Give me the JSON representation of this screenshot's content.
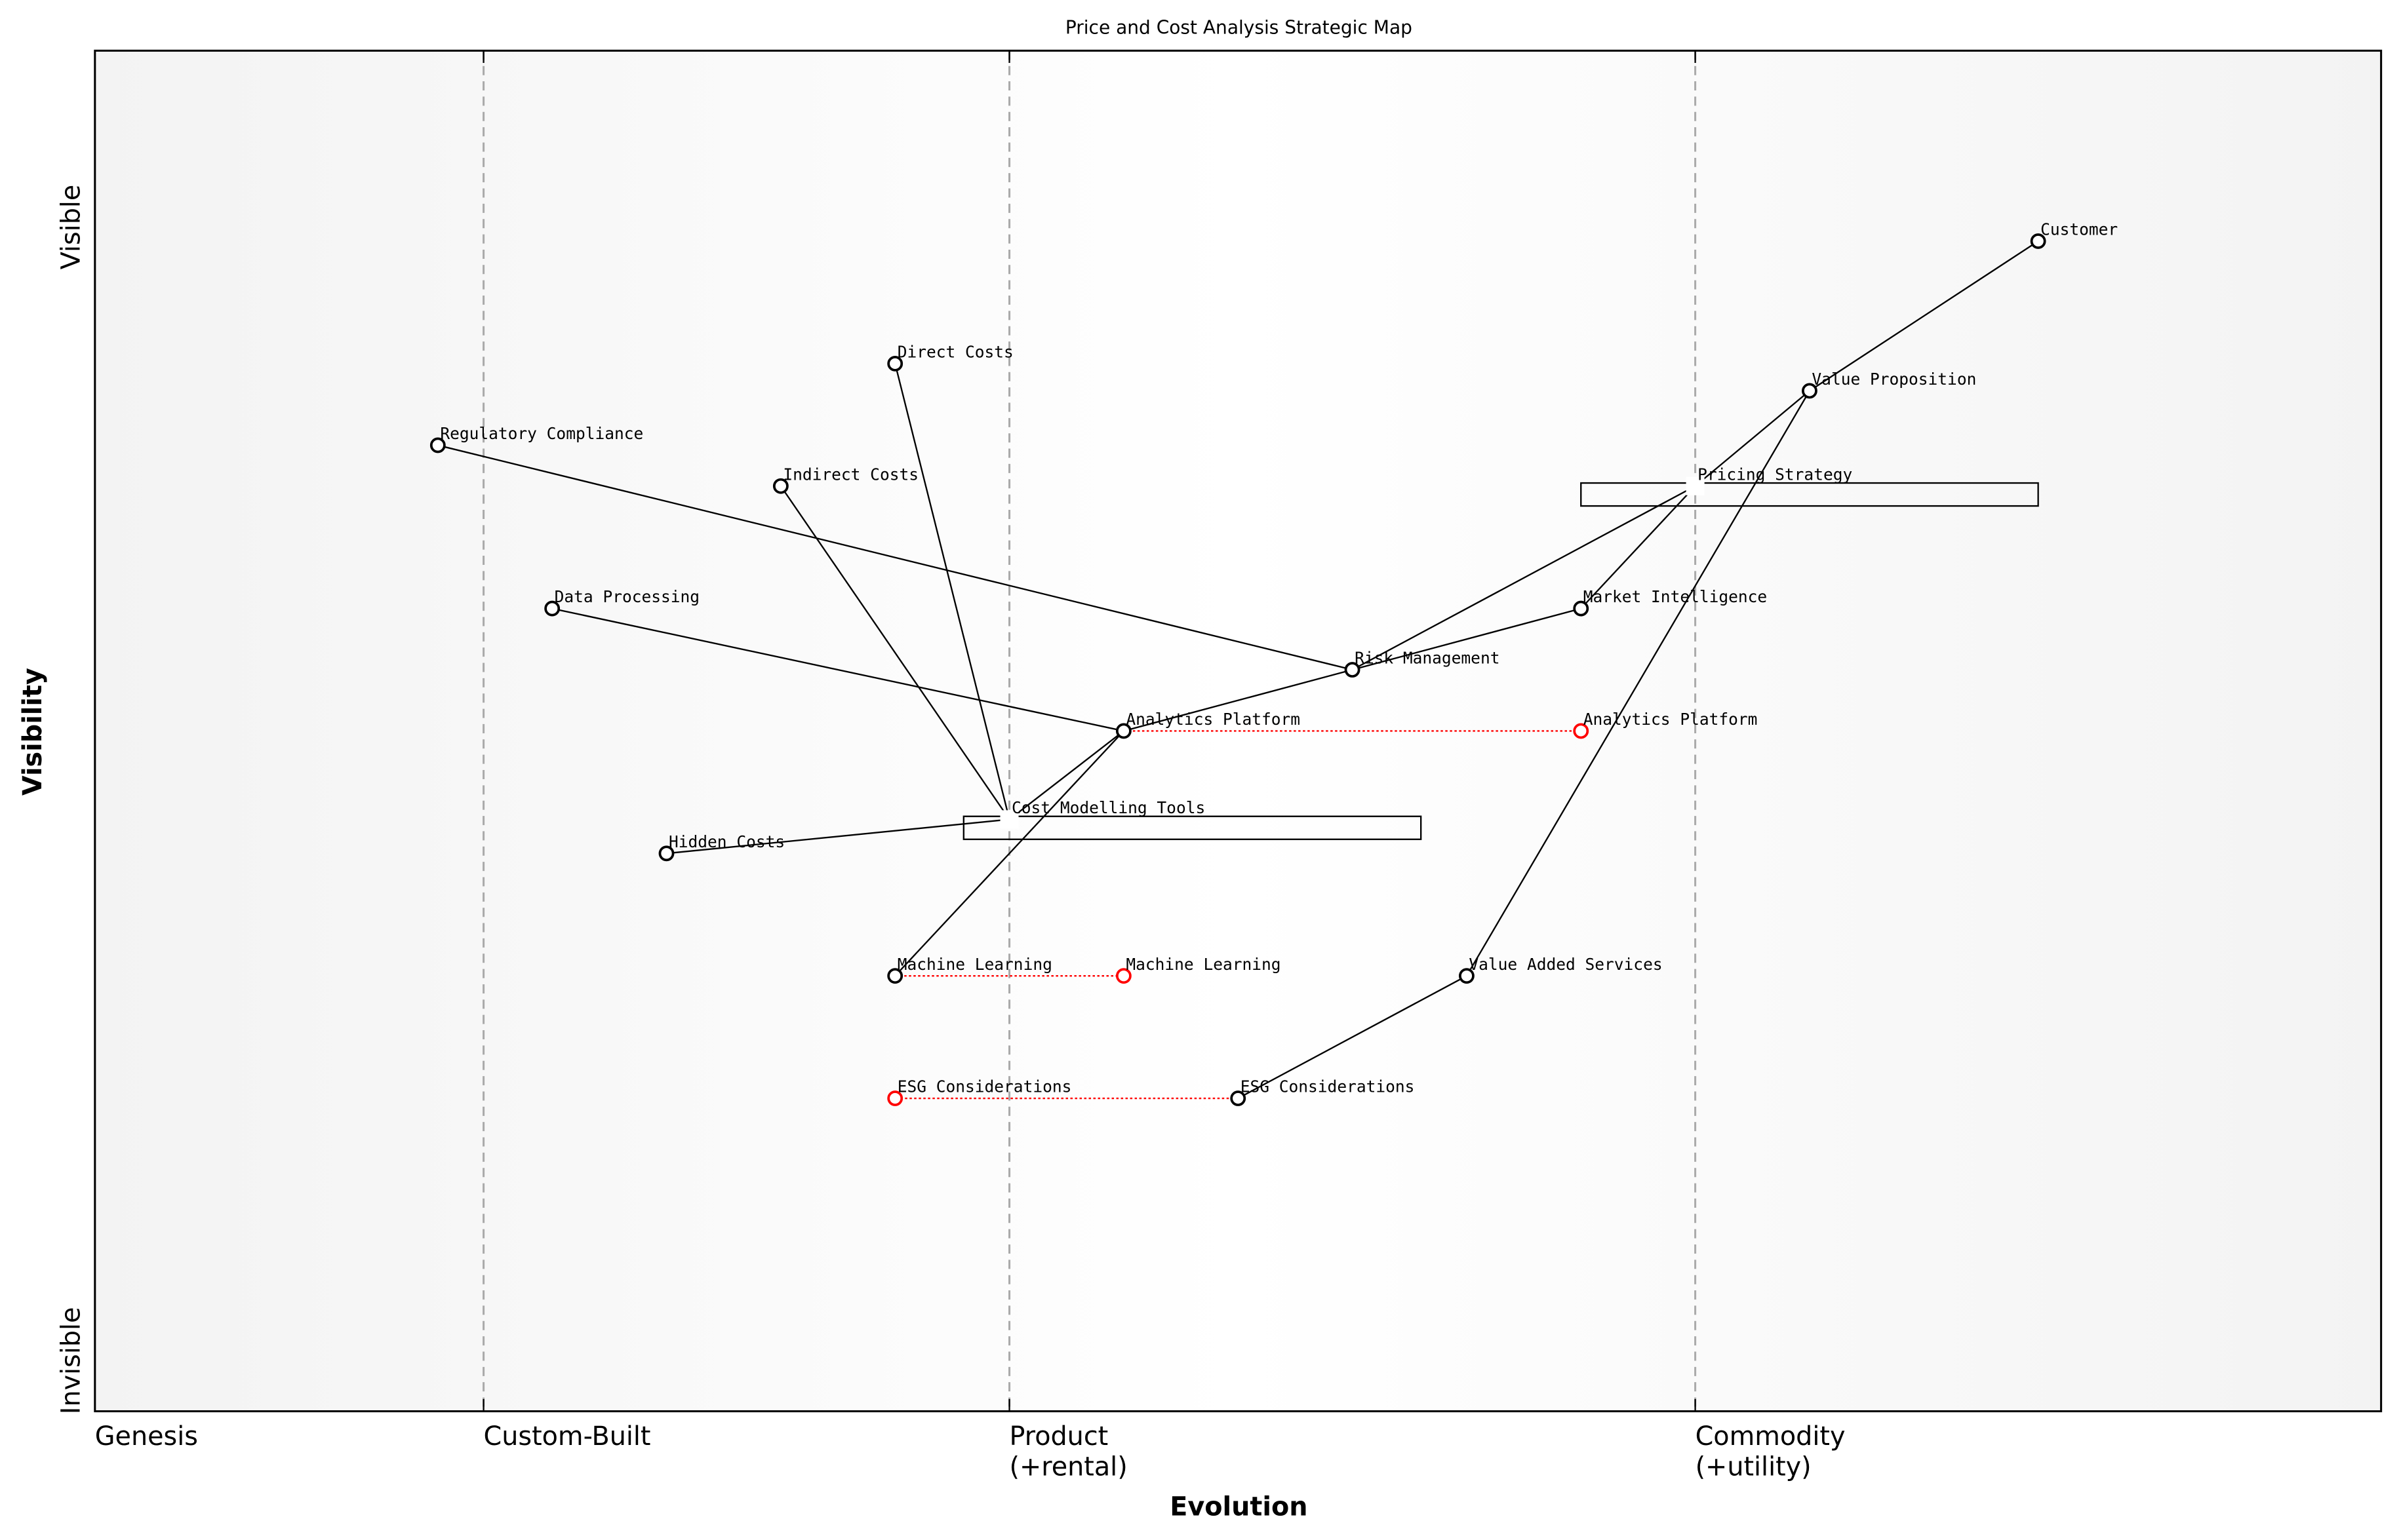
{
  "title": "Price and Cost Analysis Strategic Map",
  "x_axis": {
    "label": "Evolution",
    "stages": [
      {
        "label": "Genesis",
        "at": 0.0
      },
      {
        "label": "Custom-Built",
        "at": 0.17
      },
      {
        "label": "Product\n(+rental)",
        "at": 0.4
      },
      {
        "label": "Commodity\n(+utility)",
        "at": 0.7
      }
    ],
    "range": [
      0,
      1
    ]
  },
  "y_axis": {
    "label": "Visibility",
    "top_label": "Visible",
    "bottom_label": "Invisible",
    "range": [
      0,
      1
    ]
  },
  "colors": {
    "component": "#000000",
    "evolution_target": "#ff0000",
    "link": "#000000",
    "stage_divider": "#aaaaaa",
    "band_edge": "#f2f2f2",
    "band_center": "#ffffff"
  },
  "components": [
    {
      "id": "customer",
      "name": "Customer",
      "evolution": 0.85,
      "visibility": 0.86
    },
    {
      "id": "value_proposition",
      "name": "Value Proposition",
      "evolution": 0.75,
      "visibility": 0.75
    },
    {
      "id": "pricing_strategy",
      "name": "Pricing Strategy",
      "evolution": 0.7,
      "visibility": 0.68,
      "pipeline": [
        0.65,
        0.85
      ]
    },
    {
      "id": "market_intelligence",
      "name": "Market Intelligence",
      "evolution": 0.65,
      "visibility": 0.59
    },
    {
      "id": "risk_management",
      "name": "Risk Management",
      "evolution": 0.55,
      "visibility": 0.545
    },
    {
      "id": "analytics_platform",
      "name": "Analytics Platform",
      "evolution": 0.45,
      "visibility": 0.5,
      "evolve_to": 0.65
    },
    {
      "id": "regulatory_compliance",
      "name": "Regulatory Compliance",
      "evolution": 0.15,
      "visibility": 0.71
    },
    {
      "id": "direct_costs",
      "name": "Direct Costs",
      "evolution": 0.35,
      "visibility": 0.77
    },
    {
      "id": "indirect_costs",
      "name": "Indirect Costs",
      "evolution": 0.3,
      "visibility": 0.68
    },
    {
      "id": "data_processing",
      "name": "Data Processing",
      "evolution": 0.2,
      "visibility": 0.59
    },
    {
      "id": "cost_modelling_tools",
      "name": "Cost Modelling Tools",
      "evolution": 0.4,
      "visibility": 0.435,
      "pipeline": [
        0.38,
        0.58
      ]
    },
    {
      "id": "hidden_costs",
      "name": "Hidden Costs",
      "evolution": 0.25,
      "visibility": 0.41
    },
    {
      "id": "machine_learning",
      "name": "Machine Learning",
      "evolution": 0.35,
      "visibility": 0.32,
      "evolve_to": 0.45
    },
    {
      "id": "value_added_services",
      "name": "Value Added Services",
      "evolution": 0.6,
      "visibility": 0.32
    },
    {
      "id": "esg_considerations",
      "name": "ESG Considerations",
      "evolution": 0.5,
      "visibility": 0.23,
      "evolve_to": 0.35
    }
  ],
  "links": [
    [
      "customer",
      "value_proposition"
    ],
    [
      "value_proposition",
      "pricing_strategy"
    ],
    [
      "value_proposition",
      "value_added_services"
    ],
    [
      "pricing_strategy",
      "risk_management"
    ],
    [
      "pricing_strategy",
      "market_intelligence"
    ],
    [
      "risk_management",
      "market_intelligence"
    ],
    [
      "risk_management",
      "analytics_platform"
    ],
    [
      "risk_management",
      "regulatory_compliance"
    ],
    [
      "analytics_platform",
      "data_processing"
    ],
    [
      "analytics_platform",
      "machine_learning"
    ],
    [
      "analytics_platform",
      "cost_modelling_tools"
    ],
    [
      "cost_modelling_tools",
      "direct_costs"
    ],
    [
      "cost_modelling_tools",
      "indirect_costs"
    ],
    [
      "cost_modelling_tools",
      "hidden_costs"
    ],
    [
      "value_added_services",
      "esg_considerations"
    ]
  ]
}
